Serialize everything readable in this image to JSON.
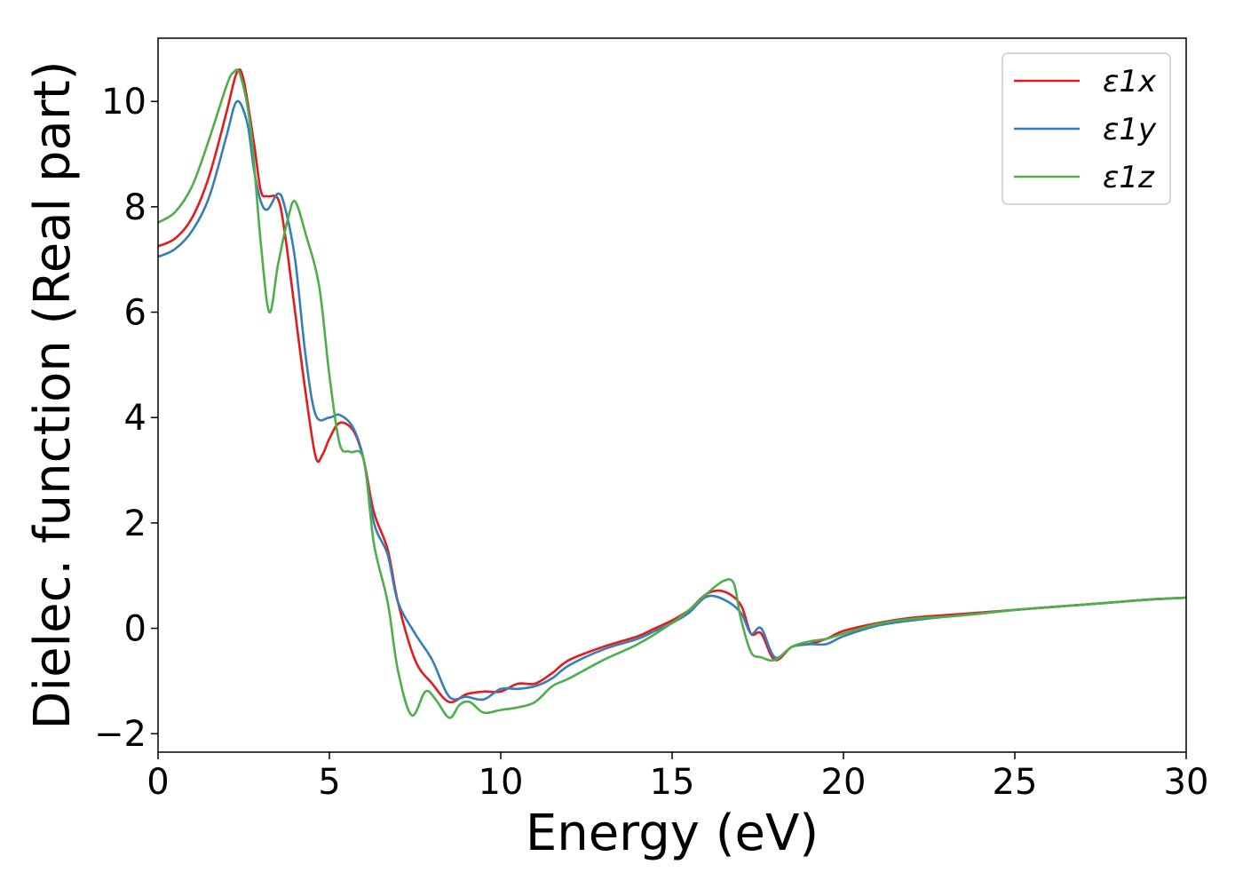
{
  "chart_data": {
    "type": "line",
    "title": "",
    "xlabel": "Energy (eV)",
    "ylabel": "Dielec. function (Real part)",
    "xlim": [
      0,
      30
    ],
    "ylim": [
      -2.35,
      11.2
    ],
    "xticks": [
      0,
      5,
      10,
      15,
      20,
      25,
      30
    ],
    "xtick_labels": [
      "0",
      "5",
      "10",
      "15",
      "20",
      "25",
      "30"
    ],
    "yticks": [
      -2,
      0,
      2,
      4,
      6,
      8,
      10
    ],
    "ytick_labels": [
      "−2",
      "0",
      "2",
      "4",
      "6",
      "8",
      "10"
    ],
    "grid": false,
    "legend_position": "top-right",
    "series": [
      {
        "name": "ε1x",
        "color": "#e41a1c",
        "x": [
          0,
          0.5,
          1.0,
          1.5,
          2.0,
          2.3,
          2.5,
          2.8,
          3.0,
          3.2,
          3.5,
          3.7,
          4.0,
          4.3,
          4.6,
          4.8,
          5.0,
          5.3,
          5.7,
          6.0,
          6.3,
          6.7,
          7.0,
          7.5,
          8.0,
          8.5,
          9.0,
          9.5,
          10.0,
          10.5,
          11.0,
          11.5,
          12.0,
          13.0,
          14.0,
          14.5,
          15.0,
          15.5,
          16.0,
          16.5,
          17.0,
          17.3,
          17.6,
          18.0,
          18.5,
          19.0,
          19.5,
          20.0,
          21.0,
          22.0,
          23.0,
          24.0,
          25.0,
          26.0,
          27.0,
          28.0,
          29.0,
          30.0
        ],
        "y": [
          7.25,
          7.4,
          7.8,
          8.6,
          9.8,
          10.55,
          10.4,
          9.2,
          8.3,
          8.2,
          8.15,
          7.5,
          6.0,
          4.5,
          3.25,
          3.3,
          3.6,
          3.9,
          3.75,
          3.2,
          2.2,
          1.5,
          0.5,
          -0.6,
          -1.05,
          -1.4,
          -1.25,
          -1.2,
          -1.2,
          -1.05,
          -1.05,
          -0.85,
          -0.6,
          -0.35,
          -0.15,
          0.0,
          0.15,
          0.35,
          0.65,
          0.7,
          0.45,
          -0.1,
          -0.1,
          -0.6,
          -0.35,
          -0.3,
          -0.2,
          -0.05,
          0.1,
          0.2,
          0.25,
          0.3,
          0.35,
          0.4,
          0.45,
          0.5,
          0.55,
          0.58
        ]
      },
      {
        "name": "ε1y",
        "color": "#377eb8",
        "x": [
          0,
          0.5,
          1.0,
          1.5,
          2.0,
          2.3,
          2.6,
          2.8,
          3.0,
          3.2,
          3.5,
          3.7,
          4.0,
          4.3,
          4.6,
          5.0,
          5.3,
          5.7,
          6.0,
          6.3,
          6.7,
          7.0,
          7.5,
          8.0,
          8.5,
          9.0,
          9.5,
          10.0,
          10.5,
          11.0,
          11.5,
          12.0,
          13.0,
          14.0,
          14.5,
          15.0,
          15.5,
          16.0,
          16.5,
          17.0,
          17.3,
          17.6,
          18.0,
          18.5,
          19.0,
          19.5,
          20.0,
          21.0,
          22.0,
          23.0,
          24.0,
          25.0,
          26.0,
          27.0,
          28.0,
          29.0,
          30.0
        ],
        "y": [
          7.05,
          7.2,
          7.55,
          8.2,
          9.35,
          10.0,
          9.6,
          8.7,
          8.1,
          7.95,
          8.25,
          8.0,
          7.0,
          5.2,
          4.05,
          4.0,
          4.05,
          3.8,
          3.2,
          2.0,
          1.4,
          0.5,
          -0.1,
          -0.6,
          -1.3,
          -1.3,
          -1.35,
          -1.15,
          -1.15,
          -1.1,
          -0.95,
          -0.7,
          -0.4,
          -0.2,
          -0.05,
          0.1,
          0.3,
          0.6,
          0.55,
          0.3,
          -0.1,
          0.0,
          -0.55,
          -0.35,
          -0.3,
          -0.3,
          -0.15,
          0.05,
          0.15,
          0.22,
          0.28,
          0.35,
          0.4,
          0.45,
          0.5,
          0.55,
          0.58
        ]
      },
      {
        "name": "ε1z",
        "color": "#4daf4a",
        "x": [
          0,
          0.5,
          1.0,
          1.5,
          2.0,
          2.2,
          2.4,
          2.7,
          3.0,
          3.25,
          3.5,
          3.8,
          4.0,
          4.3,
          4.7,
          5.0,
          5.3,
          5.6,
          6.0,
          6.3,
          6.7,
          7.0,
          7.4,
          7.8,
          8.1,
          8.5,
          8.8,
          9.1,
          9.5,
          10.0,
          10.5,
          11.0,
          11.5,
          12.0,
          13.0,
          14.0,
          15.0,
          15.5,
          16.0,
          16.5,
          16.8,
          17.0,
          17.3,
          17.6,
          18.0,
          18.5,
          19.0,
          19.5,
          20.0,
          21.0,
          22.0,
          23.0,
          24.0,
          25.0,
          26.0,
          27.0,
          28.0,
          29.0,
          30.0
        ],
        "y": [
          7.7,
          7.9,
          8.4,
          9.3,
          10.3,
          10.55,
          10.5,
          9.5,
          7.3,
          6.0,
          6.9,
          7.8,
          8.1,
          7.5,
          6.5,
          4.8,
          3.5,
          3.35,
          3.2,
          1.6,
          0.5,
          -0.8,
          -1.65,
          -1.2,
          -1.35,
          -1.7,
          -1.45,
          -1.4,
          -1.6,
          -1.55,
          -1.5,
          -1.4,
          -1.1,
          -0.95,
          -0.6,
          -0.3,
          0.1,
          0.35,
          0.65,
          0.9,
          0.85,
          0.2,
          -0.45,
          -0.55,
          -0.6,
          -0.35,
          -0.25,
          -0.2,
          -0.1,
          0.08,
          0.18,
          0.22,
          0.28,
          0.35,
          0.4,
          0.45,
          0.5,
          0.55,
          0.58
        ]
      }
    ]
  }
}
